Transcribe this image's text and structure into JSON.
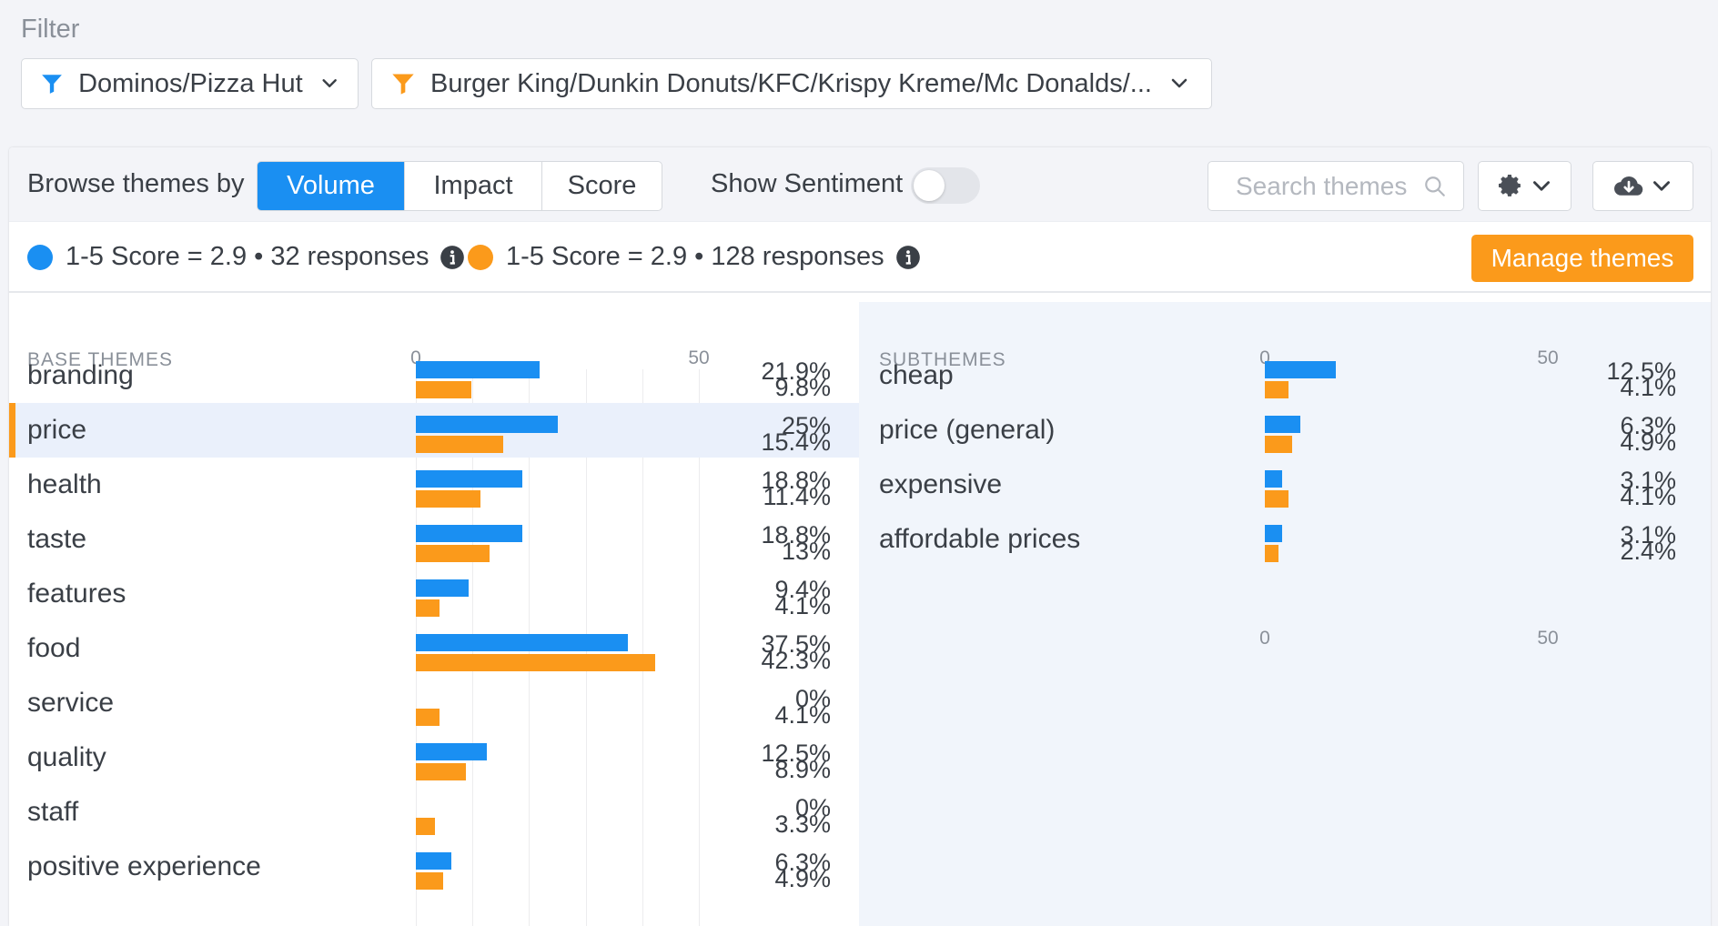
{
  "filter": {
    "label": "Filter",
    "filter1": "Dominos/Pizza Hut",
    "filter2": "Burger King/Dunkin Donuts/KFC/Krispy Kreme/Mc Donalds/...",
    "filter1_color": "#1a8ff2",
    "filter2_color": "#fb9a1b"
  },
  "toolbar": {
    "browse_label": "Browse themes by",
    "modes": [
      "Volume",
      "Impact",
      "Score"
    ],
    "active_mode": "Volume",
    "sentiment_label": "Show Sentiment",
    "sentiment_on": false,
    "search_placeholder": "Search themes",
    "settings_icon": "gear-icon",
    "download_icon": "cloud-download-icon"
  },
  "legend": {
    "series1": "1-5 Score = 2.9 • 32 responses",
    "series2": "1-5 Score = 2.9 • 128 responses",
    "manage_label": "Manage themes"
  },
  "colors": {
    "series1": "#1a8ff2",
    "series2": "#fb9a1b"
  },
  "base_themes": {
    "header": "BASE THEMES",
    "axis_ticks": [
      "0",
      "50"
    ],
    "selected": "price",
    "rows": [
      {
        "label": "branding",
        "v1": 21.9,
        "v2": 9.8,
        "p1": "21.9%",
        "p2": "9.8%"
      },
      {
        "label": "price",
        "v1": 25,
        "v2": 15.4,
        "p1": "25%",
        "p2": "15.4%"
      },
      {
        "label": "health",
        "v1": 18.8,
        "v2": 11.4,
        "p1": "18.8%",
        "p2": "11.4%"
      },
      {
        "label": "taste",
        "v1": 18.8,
        "v2": 13,
        "p1": "18.8%",
        "p2": "13%"
      },
      {
        "label": "features",
        "v1": 9.4,
        "v2": 4.1,
        "p1": "9.4%",
        "p2": "4.1%"
      },
      {
        "label": "food",
        "v1": 37.5,
        "v2": 42.3,
        "p1": "37.5%",
        "p2": "42.3%"
      },
      {
        "label": "service",
        "v1": 0,
        "v2": 4.1,
        "p1": "0%",
        "p2": "4.1%"
      },
      {
        "label": "quality",
        "v1": 12.5,
        "v2": 8.9,
        "p1": "12.5%",
        "p2": "8.9%"
      },
      {
        "label": "staff",
        "v1": 0,
        "v2": 3.3,
        "p1": "0%",
        "p2": "3.3%"
      },
      {
        "label": "positive experience",
        "v1": 6.3,
        "v2": 4.9,
        "p1": "6.3%",
        "p2": "4.9%"
      }
    ]
  },
  "subthemes": {
    "header": "SUBTHEMES",
    "axis_ticks": [
      "0",
      "50"
    ],
    "rows": [
      {
        "label": "cheap",
        "v1": 12.5,
        "v2": 4.1,
        "p1": "12.5%",
        "p2": "4.1%"
      },
      {
        "label": "price (general)",
        "v1": 6.3,
        "v2": 4.9,
        "p1": "6.3%",
        "p2": "4.9%"
      },
      {
        "label": "expensive",
        "v1": 3.1,
        "v2": 4.1,
        "p1": "3.1%",
        "p2": "4.1%"
      },
      {
        "label": "affordable prices",
        "v1": 3.1,
        "v2": 2.4,
        "p1": "3.1%",
        "p2": "2.4%"
      }
    ]
  }
}
